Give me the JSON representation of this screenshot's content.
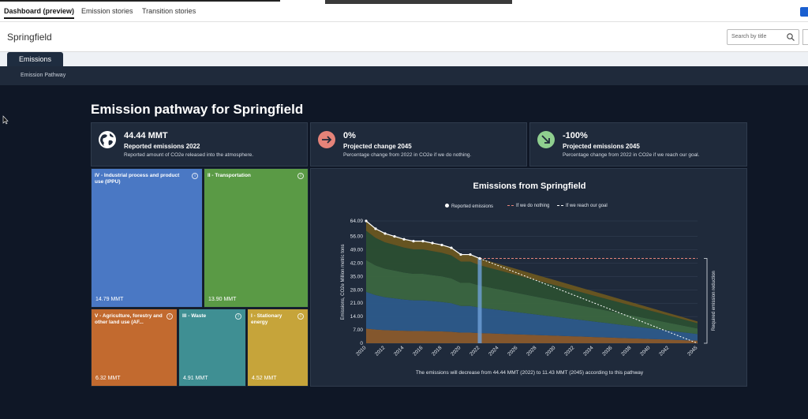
{
  "topnav": {
    "items": [
      "Dashboard (preview)",
      "Emission stories",
      "Transition stories"
    ]
  },
  "header": {
    "city": "Springfield",
    "search_placeholder": "Search by title"
  },
  "tabs": {
    "active": "Emissions"
  },
  "subnav": {
    "label": "Emission Pathway"
  },
  "page": {
    "title": "Emission pathway for Springfield"
  },
  "kpis": [
    {
      "value": "44.44 MMT",
      "label": "Reported emissions 2022",
      "desc": "Reported amount of CO2e released into the atmosphere.",
      "icon": "globe-icon"
    },
    {
      "value": "0%",
      "label": "Projected change 2045",
      "desc": "Percentage change from 2022 in CO2e if we do nothing.",
      "icon": "arrow-right-icon",
      "color": "#e58379"
    },
    {
      "value": "-100%",
      "label": "Projected emissions 2045",
      "desc": "Percentage change from 2022 in CO2e if we reach our goal.",
      "icon": "arrow-down-right-icon",
      "color": "#8fcf8f"
    }
  ],
  "sectors": [
    {
      "name": "IV - Industrial process and product use (IPPU)",
      "value": "14.79 MMT",
      "color": "#4a78c4"
    },
    {
      "name": "II - Transportation",
      "value": "13.90 MMT",
      "color": "#5a9a45"
    },
    {
      "name": "V - Agriculture, forestry and other land use (AF...",
      "value": "6.32 MMT",
      "color": "#c26a2f"
    },
    {
      "name": "III - Waste",
      "value": "4.91 MMT",
      "color": "#3f8f93"
    },
    {
      "name": "I - Stationary energy",
      "value": "4.52 MMT",
      "color": "#c6a43a"
    }
  ],
  "chart": {
    "title": "Emissions from Springfield",
    "legend": [
      "Reported emissions",
      "If we do nothing",
      "If we reach our goal"
    ],
    "ylabel": "Emissions, CO2e Million metric tons",
    "right_label": "Required emission reduction",
    "caption": "The emissions will decrease from 44.44 MMT (2022) to 11.43 MMT (2045) according to this pathway"
  },
  "chart_data": {
    "type": "area",
    "title": "Emissions from Springfield",
    "ylabel": "Emissions, CO2e Million metric tons",
    "yticks": [
      "0",
      "7.00",
      "14.00",
      "21.00",
      "28.00",
      "35.00",
      "42.00",
      "49.00",
      "56.00",
      "64.09"
    ],
    "ylim": [
      0,
      64.09
    ],
    "xticks": [
      "2010",
      "2012",
      "2014",
      "2016",
      "2018",
      "2020",
      "2022",
      "2024",
      "2026",
      "2028",
      "2030",
      "2032",
      "2034",
      "2036",
      "2038",
      "2040",
      "2042",
      "2045"
    ],
    "x": [
      2010,
      2011,
      2012,
      2013,
      2014,
      2015,
      2016,
      2017,
      2018,
      2019,
      2020,
      2021,
      2022,
      2045
    ],
    "reported": [
      64.09,
      60.0,
      57.5,
      56.0,
      54.5,
      53.5,
      53.5,
      52.5,
      51.5,
      50.0,
      46.5,
      46.5,
      44.44,
      null
    ],
    "do_nothing": {
      "x": [
        2022,
        2045
      ],
      "y": [
        44.44,
        44.44
      ]
    },
    "goal": {
      "x": [
        2022,
        2045
      ],
      "y": [
        44.44,
        0
      ]
    },
    "pathway_end": {
      "x": 2045,
      "y": 11.43
    },
    "series_colors": [
      "#8a5a2c",
      "#2d5a8a",
      "#3b6640",
      "#2b4e32",
      "#6a5620"
    ]
  }
}
